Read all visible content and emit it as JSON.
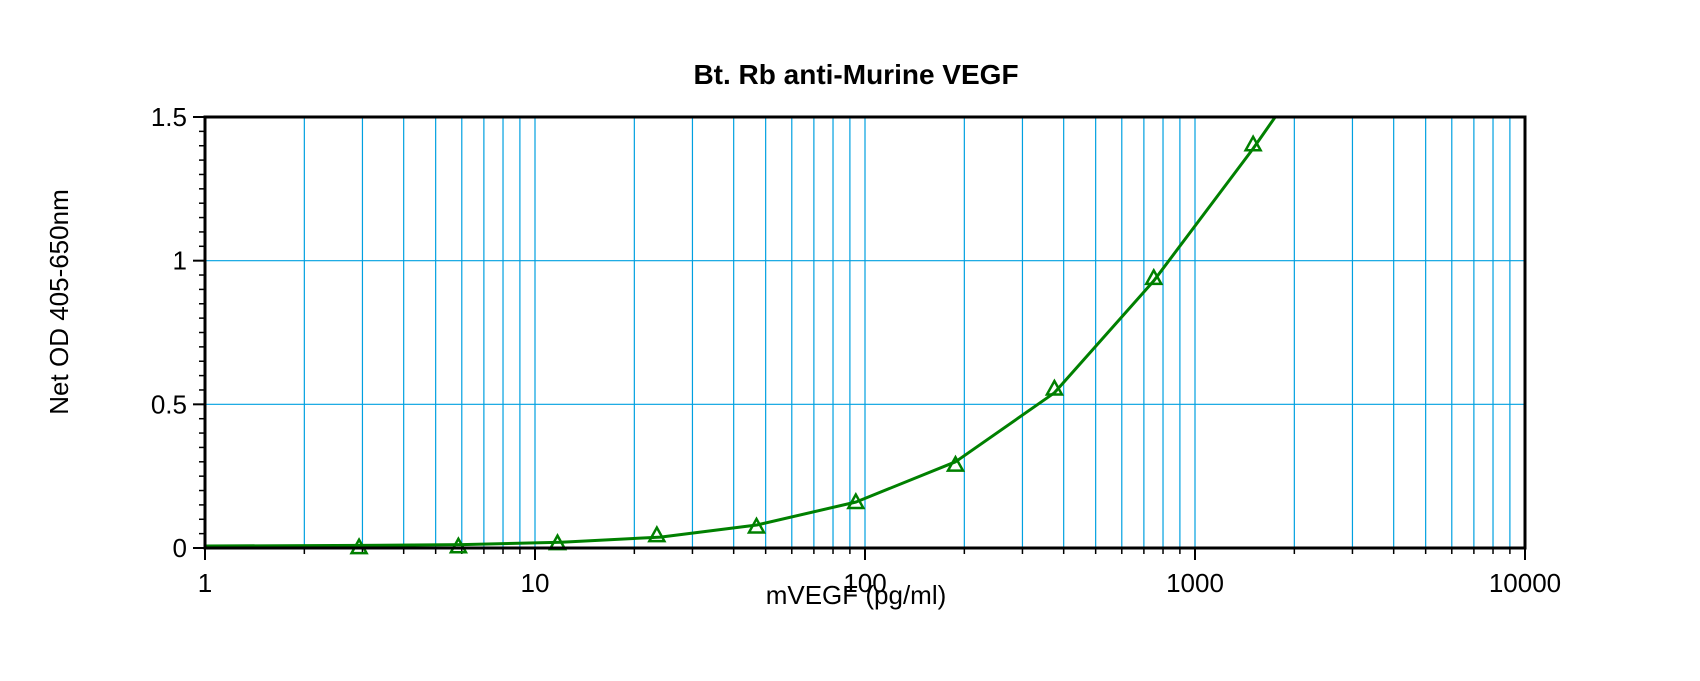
{
  "chart_data": {
    "type": "scatter",
    "title": "Bt. Rb anti-Murine VEGF",
    "xlabel": "mVEGF (pg/ml)",
    "ylabel": "Net OD 405-650nm",
    "x_scale": "log",
    "xlim": [
      1,
      10000
    ],
    "ylim": [
      0,
      1.5
    ],
    "x_ticks": [
      {
        "value": 1,
        "label": "1"
      },
      {
        "value": 10,
        "label": "10"
      },
      {
        "value": 100,
        "label": "100"
      },
      {
        "value": 1000,
        "label": "1000"
      },
      {
        "value": 10000,
        "label": "10000"
      }
    ],
    "y_ticks": [
      {
        "value": 0,
        "label": "0"
      },
      {
        "value": 0.5,
        "label": "0.5"
      },
      {
        "value": 1,
        "label": "1"
      },
      {
        "value": 1.5,
        "label": "1.5"
      }
    ],
    "grid": true,
    "series": [
      {
        "marker": "triangle",
        "color": "#008000",
        "points": [
          {
            "x": 2.93,
            "y": 0.003
          },
          {
            "x": 5.86,
            "y": 0.006
          },
          {
            "x": 11.7,
            "y": 0.017
          },
          {
            "x": 23.4,
            "y": 0.045
          },
          {
            "x": 46.9,
            "y": 0.075
          },
          {
            "x": 93.8,
            "y": 0.16
          },
          {
            "x": 188,
            "y": 0.29
          },
          {
            "x": 375,
            "y": 0.555
          },
          {
            "x": 750,
            "y": 0.94
          },
          {
            "x": 1500,
            "y": 1.405
          }
        ]
      }
    ],
    "fit_curve": {
      "color": "#008000",
      "points": [
        {
          "x": 1,
          "y": 0.007
        },
        {
          "x": 3,
          "y": 0.009
        },
        {
          "x": 6,
          "y": 0.012
        },
        {
          "x": 12,
          "y": 0.02
        },
        {
          "x": 24,
          "y": 0.038
        },
        {
          "x": 47,
          "y": 0.08
        },
        {
          "x": 94,
          "y": 0.16
        },
        {
          "x": 188,
          "y": 0.3
        },
        {
          "x": 375,
          "y": 0.54
        },
        {
          "x": 750,
          "y": 0.93
        },
        {
          "x": 1500,
          "y": 1.39
        },
        {
          "x": 1750,
          "y": 1.5
        }
      ]
    },
    "colors": {
      "grid": "#00a0e0",
      "frame": "#000000",
      "series": "#008000"
    }
  }
}
